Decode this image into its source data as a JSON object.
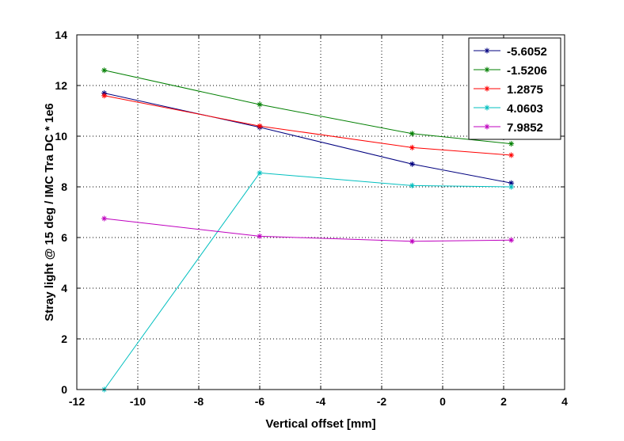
{
  "chart_data": {
    "type": "line",
    "title": "",
    "xlabel": "Vertical offset [mm]",
    "ylabel": "Stray light @ 15 deg / IMC Tra DC * 1e6",
    "xlim": [
      -12,
      4
    ],
    "ylim": [
      0,
      14
    ],
    "xticks": [
      -12,
      -10,
      -8,
      -6,
      -4,
      -2,
      0,
      2,
      4
    ],
    "yticks": [
      0,
      2,
      4,
      6,
      8,
      10,
      12,
      14
    ],
    "grid": true,
    "legend_position": "top-right",
    "x": [
      -11.1,
      -6.0,
      -1.0,
      2.25
    ],
    "series": [
      {
        "name": "-5.6052",
        "color": "#00007f",
        "values": [
          11.7,
          10.35,
          8.9,
          8.15
        ]
      },
      {
        "name": "-1.5206",
        "color": "#007f00",
        "values": [
          12.6,
          11.25,
          10.1,
          9.7
        ]
      },
      {
        "name": "1.2875",
        "color": "#ff0000",
        "values": [
          11.6,
          10.4,
          9.55,
          9.25
        ]
      },
      {
        "name": "4.0603",
        "color": "#00bfbf",
        "values": [
          0.0,
          8.55,
          8.05,
          8.0
        ]
      },
      {
        "name": "7.9852",
        "color": "#bf00bf",
        "values": [
          6.75,
          6.05,
          5.85,
          5.9
        ]
      }
    ]
  }
}
